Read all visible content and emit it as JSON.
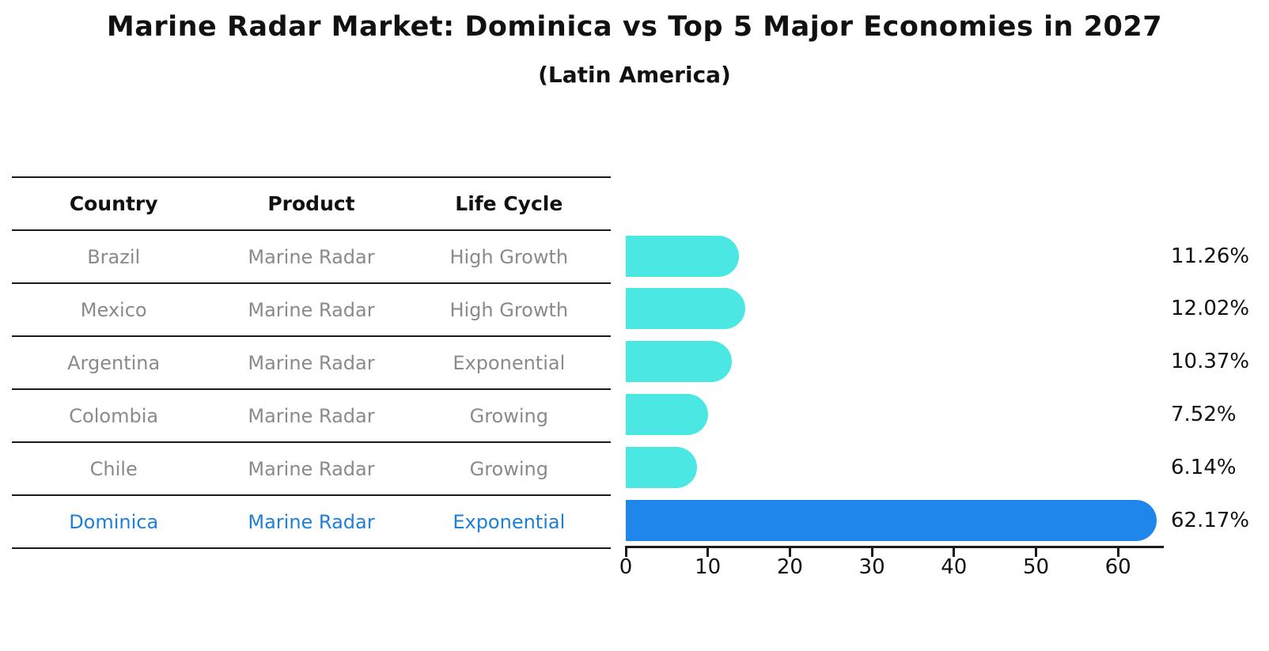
{
  "title": "Marine Radar Market: Dominica vs Top 5 Major Economies in 2027",
  "subtitle": "(Latin America)",
  "table": {
    "headers": [
      "Country",
      "Product",
      "Life Cycle"
    ],
    "rows": [
      {
        "country": "Brazil",
        "product": "Marine Radar",
        "life_cycle": "High Growth",
        "highlight": false
      },
      {
        "country": "Mexico",
        "product": "Marine Radar",
        "life_cycle": "High Growth",
        "highlight": false
      },
      {
        "country": "Argentina",
        "product": "Marine Radar",
        "life_cycle": "Exponential",
        "highlight": false
      },
      {
        "country": "Colombia",
        "product": "Marine Radar",
        "life_cycle": "Growing",
        "highlight": false
      },
      {
        "country": "Chile",
        "product": "Marine Radar",
        "life_cycle": "Growing",
        "highlight": false
      },
      {
        "country": "Dominica",
        "product": "Marine Radar",
        "life_cycle": "Exponential",
        "highlight": true
      }
    ]
  },
  "chart_data": {
    "type": "bar",
    "orientation": "horizontal",
    "title": "Marine Radar Market: Dominica vs Top 5 Major Economies in 2027 (Latin America)",
    "categories": [
      "Brazil",
      "Mexico",
      "Argentina",
      "Colombia",
      "Chile",
      "Dominica"
    ],
    "values": [
      11.26,
      12.02,
      10.37,
      7.52,
      6.14,
      62.17
    ],
    "value_labels": [
      "11.26%",
      "12.02%",
      "10.37%",
      "7.52%",
      "6.14%",
      "62.17%"
    ],
    "x_ticks": [
      "0",
      "10",
      "20",
      "30",
      "40",
      "50",
      "60"
    ],
    "x_tick_values": [
      0,
      10,
      20,
      30,
      40,
      50,
      60
    ],
    "xlim": [
      0,
      65.5
    ],
    "grid": false,
    "legend": false,
    "highlight_index": 5,
    "colors": {
      "bar_default": "#4BE8E3",
      "bar_highlight": "#1F86EC",
      "highlight_text": "#1E7FD6",
      "table_text": "#8A8A8A",
      "axis_text": "#111111"
    }
  }
}
